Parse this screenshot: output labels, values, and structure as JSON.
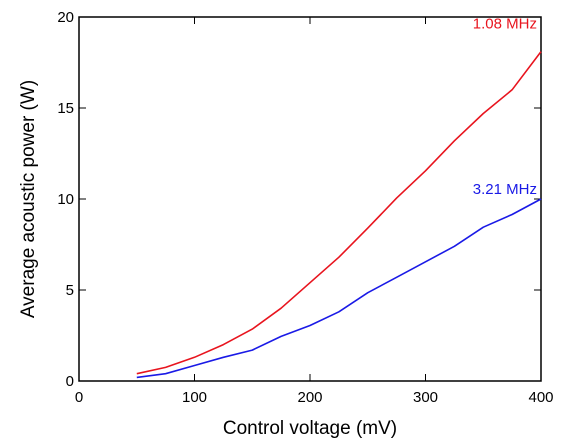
{
  "chart_data": {
    "type": "line",
    "title": "",
    "xlabel": "Control voltage (mV)",
    "ylabel": "Average acoustic power  (W)",
    "xlim": [
      0,
      400
    ],
    "ylim": [
      0,
      20
    ],
    "xticks": [
      0,
      100,
      200,
      300,
      400
    ],
    "yticks": [
      0,
      5,
      10,
      15,
      20
    ],
    "grid": false,
    "legend": "inline labels at line ends",
    "series": [
      {
        "name": "1.08 MHz",
        "color": "#e8141e",
        "x": [
          50,
          75,
          100,
          125,
          150,
          175,
          200,
          225,
          250,
          275,
          300,
          325,
          350,
          375,
          400
        ],
        "y": [
          0.4,
          0.75,
          1.3,
          2.0,
          2.85,
          4.0,
          5.4,
          6.8,
          8.4,
          10.05,
          11.55,
          13.2,
          14.7,
          16.0,
          18.1
        ]
      },
      {
        "name": "3.21 MHz",
        "color": "#1a1ae6",
        "x": [
          50,
          75,
          100,
          125,
          150,
          175,
          200,
          225,
          250,
          275,
          300,
          325,
          350,
          375,
          400
        ],
        "y": [
          0.2,
          0.4,
          0.85,
          1.3,
          1.7,
          2.45,
          3.05,
          3.8,
          4.85,
          5.7,
          6.55,
          7.4,
          8.45,
          9.15,
          10.0
        ]
      }
    ]
  }
}
